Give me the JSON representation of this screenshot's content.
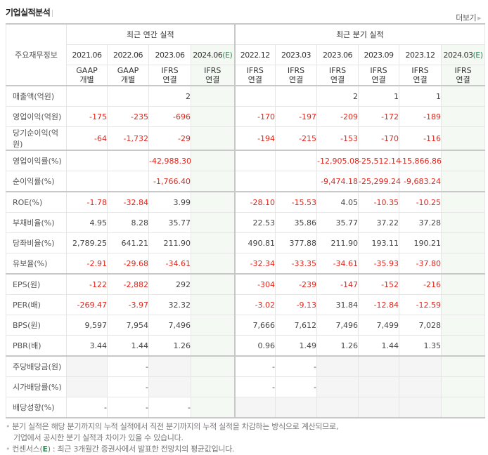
{
  "header": {
    "title": "기업실적분석",
    "more_label": "더보기"
  },
  "table": {
    "row_header_label": "주요재무정보",
    "groups": {
      "annual": "최근 연간 실적",
      "quarterly": "최근 분기 실적"
    },
    "columns": [
      {
        "date": "2021.06",
        "estimate": false,
        "acct": "GAAP",
        "basis": "개별"
      },
      {
        "date": "2022.06",
        "estimate": false,
        "acct": "GAAP",
        "basis": "개별"
      },
      {
        "date": "2023.06",
        "estimate": false,
        "acct": "IFRS",
        "basis": "연결"
      },
      {
        "date": "2024.06",
        "estimate": true,
        "acct": "IFRS",
        "basis": "연결"
      },
      {
        "date": "2022.12",
        "estimate": false,
        "acct": "IFRS",
        "basis": "연결"
      },
      {
        "date": "2023.03",
        "estimate": false,
        "acct": "IFRS",
        "basis": "연결"
      },
      {
        "date": "2023.06",
        "estimate": false,
        "acct": "IFRS",
        "basis": "연결"
      },
      {
        "date": "2023.09",
        "estimate": false,
        "acct": "IFRS",
        "basis": "연결"
      },
      {
        "date": "2023.12",
        "estimate": false,
        "acct": "IFRS",
        "basis": "연결"
      },
      {
        "date": "2024.03",
        "estimate": true,
        "acct": "IFRS",
        "basis": "연결"
      }
    ],
    "estimate_mark": "(E)",
    "rows": [
      {
        "label": "매출액(억원)",
        "values": [
          "",
          "",
          "2",
          "",
          "",
          "",
          "2",
          "1",
          "1",
          ""
        ]
      },
      {
        "label": "영업이익(억원)",
        "values": [
          "-175",
          "-235",
          "-696",
          "",
          "-170",
          "-197",
          "-209",
          "-172",
          "-189",
          ""
        ]
      },
      {
        "label": "당기순이익(억원)",
        "values": [
          "-64",
          "-1,732",
          "-29",
          "",
          "-194",
          "-215",
          "-153",
          "-170",
          "-116",
          ""
        ]
      },
      {
        "label": "영업이익률(%)",
        "values": [
          "",
          "",
          "-42,988.30",
          "",
          "",
          "",
          "-12,905.08",
          "-25,512.14",
          "-15,866.86",
          ""
        ]
      },
      {
        "label": "순이익률(%)",
        "values": [
          "",
          "",
          "-1,766.40",
          "",
          "",
          "",
          "-9,474.18",
          "-25,299.24",
          "-9,683.24",
          ""
        ]
      },
      {
        "label": "ROE(%)",
        "values": [
          "-1.78",
          "-32.84",
          "3.99",
          "",
          "-28.10",
          "-15.53",
          "4.05",
          "-10.35",
          "-10.25",
          ""
        ]
      },
      {
        "label": "부채비율(%)",
        "values": [
          "4.95",
          "8.28",
          "35.77",
          "",
          "22.53",
          "35.86",
          "35.77",
          "37.22",
          "37.28",
          ""
        ]
      },
      {
        "label": "당좌비율(%)",
        "values": [
          "2,789.25",
          "641.21",
          "211.90",
          "",
          "490.81",
          "377.88",
          "211.90",
          "193.11",
          "190.21",
          ""
        ]
      },
      {
        "label": "유보율(%)",
        "values": [
          "-2.91",
          "-29.68",
          "-34.61",
          "",
          "-32.34",
          "-33.35",
          "-34.61",
          "-35.93",
          "-37.80",
          ""
        ]
      },
      {
        "label": "EPS(원)",
        "values": [
          "-122",
          "-2,882",
          "292",
          "",
          "-304",
          "-239",
          "-147",
          "-152",
          "-216",
          ""
        ]
      },
      {
        "label": "PER(배)",
        "values": [
          "-269.47",
          "-3.97",
          "32.32",
          "",
          "-3.02",
          "-9.13",
          "31.84",
          "-12.84",
          "-12.59",
          ""
        ]
      },
      {
        "label": "BPS(원)",
        "values": [
          "9,597",
          "7,954",
          "7,496",
          "",
          "7,666",
          "7,612",
          "7,496",
          "7,499",
          "7,028",
          ""
        ]
      },
      {
        "label": "PBR(배)",
        "values": [
          "3.44",
          "1.44",
          "1.26",
          "",
          "0.96",
          "1.49",
          "1.26",
          "1.44",
          "1.35",
          ""
        ]
      },
      {
        "label": "주당배당금(원)",
        "values": [
          "",
          "-",
          "",
          "",
          "-",
          "-",
          "",
          "",
          "",
          ""
        ]
      },
      {
        "label": "시가배당률(%)",
        "values": [
          "",
          "-",
          "",
          "",
          "-",
          "-",
          "",
          "",
          "",
          ""
        ]
      },
      {
        "label": "배당성향(%)",
        "values": [
          "-",
          "-",
          "-",
          "",
          "",
          "",
          "",
          "",
          "",
          ""
        ]
      }
    ]
  },
  "notes": {
    "line1": "분기 실적은 해당 분기까지의 누적 실적에서 직전 분기까지의 누적 실적을 차감하는 방식으로 계산되므로,",
    "line2": "기업에서 공시한 분기 실적과 차이가 있을 수 있습니다.",
    "line3_prefix": "컨센서스(",
    "line3_e": "E",
    "line3_suffix": ") : 최근 3개월간 증권사에서 발표한 전망치의 평균값입니다."
  },
  "colors": {
    "negative": "#e1261c",
    "ifrs": "#e96b2c",
    "estimate": "#2e8b57",
    "estimate_bg": "#f4f9f4",
    "empty_bg": "#f5f5f5"
  }
}
